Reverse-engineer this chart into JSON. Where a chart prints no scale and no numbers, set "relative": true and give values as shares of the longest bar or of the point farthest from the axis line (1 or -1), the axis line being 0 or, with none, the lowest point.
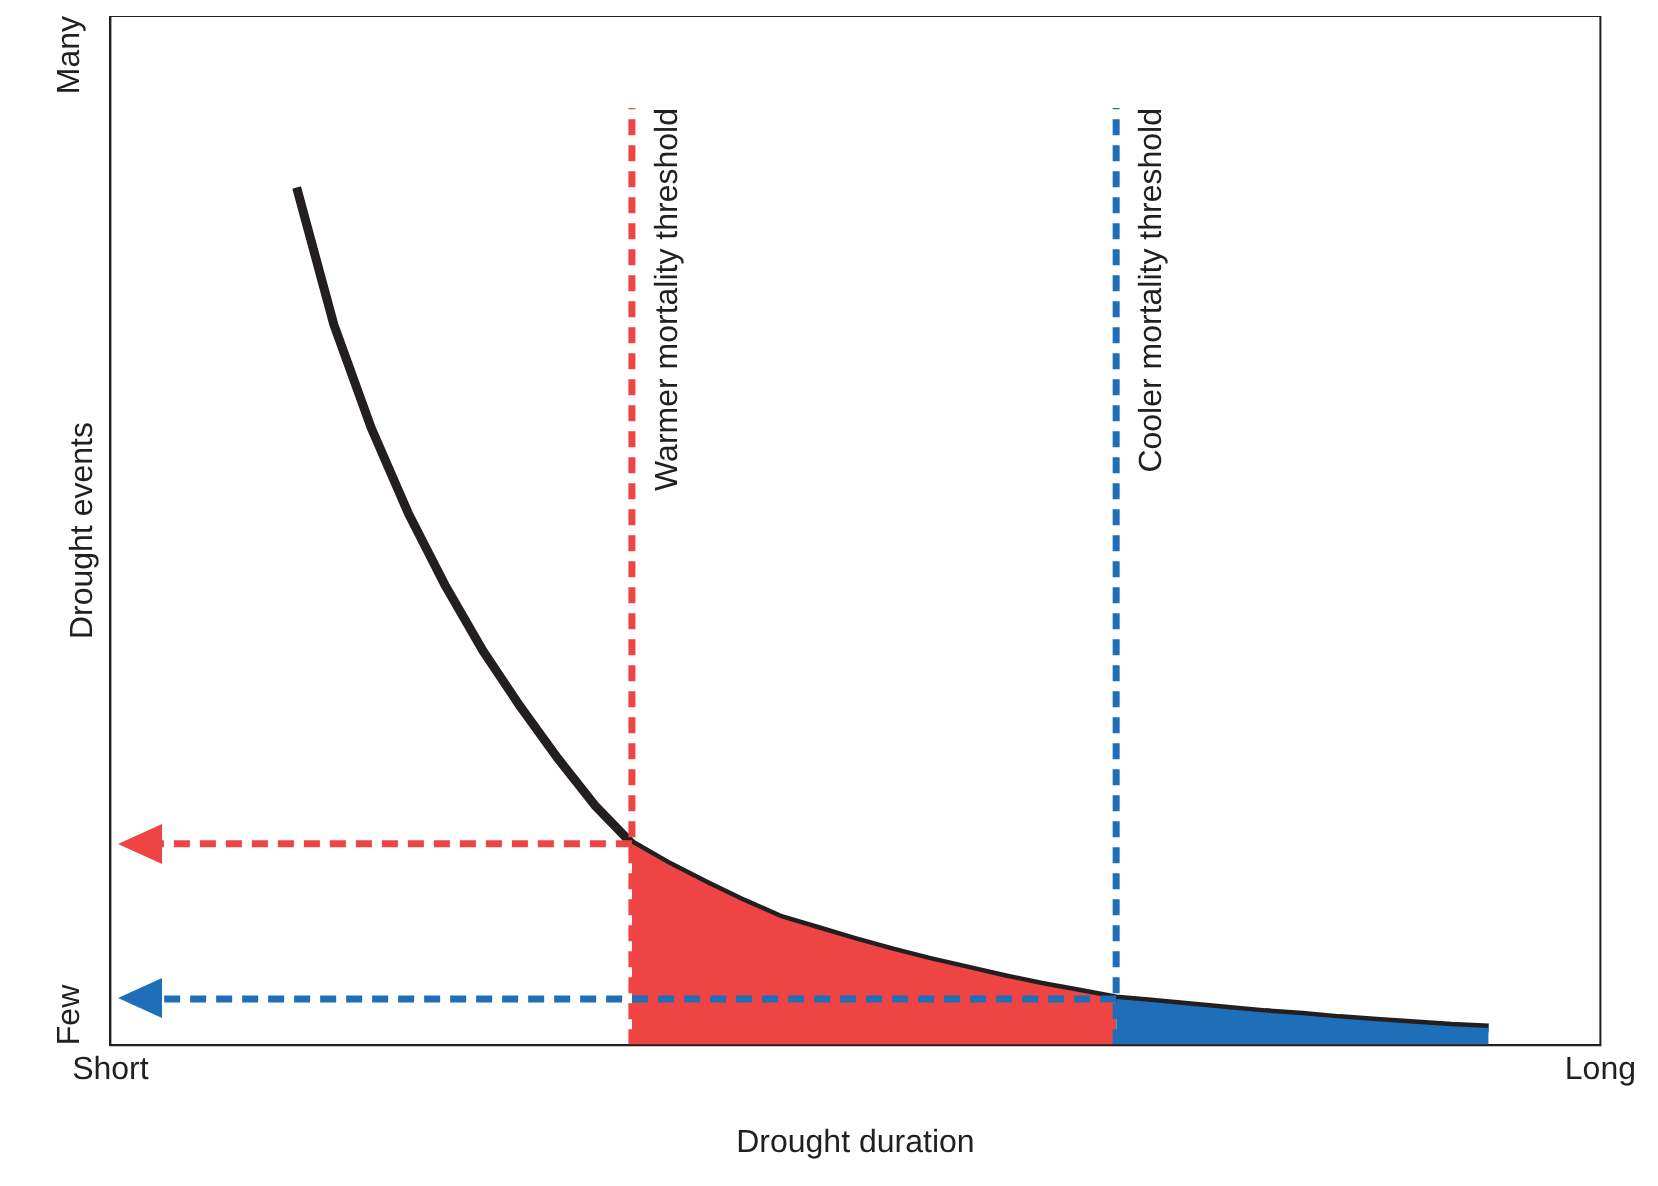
{
  "chart_data": {
    "type": "line",
    "xlabel": "Drought duration",
    "ylabel": "Drought events",
    "relative": true,
    "categories": [
      "Short",
      null,
      null,
      null,
      null,
      null,
      null,
      null,
      null,
      null,
      null,
      null,
      null,
      null,
      null,
      null,
      null,
      null,
      null,
      null,
      null,
      null,
      null,
      null,
      null,
      null,
      null,
      null,
      null,
      null,
      null,
      null,
      null,
      null,
      null,
      null,
      null,
      null,
      null,
      null,
      "Long"
    ],
    "annotations": [
      "Few",
      "Many",
      "Warmer mortality threshold",
      "Cooler mortality threshold"
    ],
    "grid": false,
    "legend": false,
    "marker": "none",
    "series": [
      {
        "type": "area",
        "color": "#ef4444",
        "values": [
          null,
          null,
          null,
          null,
          null,
          null,
          null,
          null,
          null,
          null,
          null,
          null,
          null,
          null,
          0.235,
          0.21,
          0.188,
          0.167,
          0.148,
          0.135,
          0.122,
          0.11,
          0.099,
          0.089,
          0.079,
          0.07,
          0.062,
          0.054,
          null,
          null,
          null,
          null,
          null,
          null,
          null,
          null,
          null,
          null,
          null,
          null,
          null
        ]
      },
      {
        "type": "area",
        "color": "#1f6fb8",
        "values": [
          null,
          null,
          null,
          null,
          null,
          null,
          null,
          null,
          null,
          null,
          null,
          null,
          null,
          null,
          null,
          null,
          null,
          null,
          null,
          null,
          null,
          null,
          null,
          null,
          null,
          null,
          null,
          0.054,
          0.05,
          0.046,
          0.042,
          0.038,
          0.035,
          0.031,
          0.028,
          0.025,
          0.022,
          0.02,
          null,
          null,
          null
        ]
      },
      {
        "type": "line",
        "color": "#231f20",
        "line_style": "solid",
        "values": [
          null,
          null,
          null,
          null,
          null,
          1,
          0.84,
          0.72,
          0.62,
          0.535,
          0.46,
          0.395,
          0.335,
          0.28,
          0.235,
          0.21,
          0.188,
          0.167,
          0.148,
          0.135,
          0.122,
          0.11,
          0.099,
          0.089,
          0.079,
          0.07,
          0.062,
          0.054,
          0.05,
          0.046,
          0.042,
          0.038,
          0.035,
          0.031,
          0.028,
          0.025,
          0.022,
          0.02,
          null,
          null,
          null
        ]
      }
    ],
    "ref_lines": [
      {
        "axis": "y",
        "value": 0.235,
        "color": "#ef4444",
        "line_style": "dashed"
      },
      {
        "axis": "y",
        "value": 0.054,
        "color": "#1f6fb8",
        "line_style": "dashed"
      }
    ]
  }
}
